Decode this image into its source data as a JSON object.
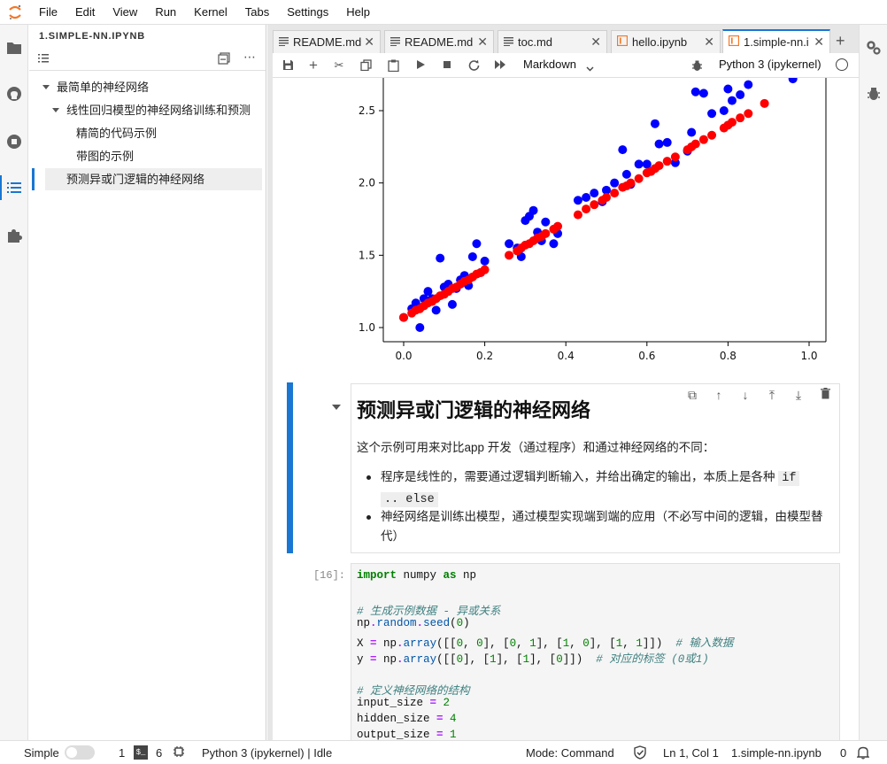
{
  "menu": [
    "File",
    "Edit",
    "View",
    "Run",
    "Kernel",
    "Tabs",
    "Settings",
    "Help"
  ],
  "toc": {
    "title": "1.SIMPLE-NN.IPYNB",
    "items": [
      {
        "label": "最简单的神经网络",
        "level": 1,
        "collapsible": true
      },
      {
        "label": "线性回归模型的神经网络训练和预测",
        "level": 2,
        "collapsible": true
      },
      {
        "label": "精简的代码示例",
        "level": 3,
        "collapsible": false
      },
      {
        "label": "带图的示例",
        "level": 3,
        "collapsible": false
      },
      {
        "label": "预测异或门逻辑的神经网络",
        "level": 1,
        "collapsible": false,
        "selected": true
      }
    ]
  },
  "tabs": [
    {
      "label": "README.md",
      "icon": "markdown-icon",
      "active": false
    },
    {
      "label": "README.md",
      "icon": "markdown-icon",
      "active": false
    },
    {
      "label": "toc.md",
      "icon": "markdown-icon",
      "active": false
    },
    {
      "label": "hello.ipynb",
      "icon": "notebook-icon",
      "active": false
    },
    {
      "label": "1.simple-nn.i",
      "icon": "notebook-icon",
      "active": true
    }
  ],
  "toolbar": {
    "cell_type": "Markdown",
    "kernel": "Python 3 (ipykernel)"
  },
  "chart_data": {
    "type": "scatter",
    "xlim": [
      0.0,
      1.0
    ],
    "ylim": [
      0.95,
      2.75
    ],
    "xticks": [
      "0.0",
      "0.2",
      "0.4",
      "0.6",
      "0.8",
      "1.0"
    ],
    "yticks": [
      "1.0",
      "1.5",
      "2.0",
      "2.5"
    ],
    "series": [
      {
        "color": "#0000ff",
        "kind": "scatter",
        "x": [
          0.0,
          0.02,
          0.03,
          0.04,
          0.05,
          0.06,
          0.07,
          0.08,
          0.09,
          0.1,
          0.11,
          0.12,
          0.13,
          0.14,
          0.15,
          0.16,
          0.17,
          0.18,
          0.19,
          0.2,
          0.26,
          0.28,
          0.29,
          0.3,
          0.31,
          0.32,
          0.33,
          0.34,
          0.35,
          0.37,
          0.38,
          0.43,
          0.45,
          0.47,
          0.49,
          0.5,
          0.52,
          0.54,
          0.55,
          0.56,
          0.58,
          0.6,
          0.61,
          0.62,
          0.63,
          0.65,
          0.67,
          0.7,
          0.71,
          0.72,
          0.74,
          0.76,
          0.79,
          0.8,
          0.81,
          0.83,
          0.85,
          0.96
        ],
        "y": [
          1.07,
          1.13,
          1.17,
          1.0,
          1.2,
          1.25,
          1.2,
          1.12,
          1.48,
          1.28,
          1.3,
          1.16,
          1.27,
          1.33,
          1.36,
          1.29,
          1.49,
          1.58,
          1.38,
          1.46,
          1.58,
          1.55,
          1.49,
          1.74,
          1.77,
          1.81,
          1.66,
          1.6,
          1.73,
          1.58,
          1.65,
          1.88,
          1.9,
          1.93,
          1.87,
          1.95,
          2.0,
          2.23,
          2.06,
          1.99,
          2.13,
          2.13,
          2.08,
          2.41,
          2.27,
          2.28,
          2.14,
          2.22,
          2.35,
          2.63,
          2.62,
          2.48,
          2.5,
          2.65,
          2.57,
          2.61,
          2.68,
          2.72
        ]
      },
      {
        "color": "#ff0000",
        "kind": "scatter",
        "x": [
          0.0,
          0.02,
          0.03,
          0.04,
          0.05,
          0.06,
          0.07,
          0.08,
          0.09,
          0.1,
          0.11,
          0.12,
          0.13,
          0.14,
          0.15,
          0.16,
          0.17,
          0.18,
          0.19,
          0.2,
          0.26,
          0.28,
          0.29,
          0.3,
          0.31,
          0.32,
          0.33,
          0.34,
          0.35,
          0.37,
          0.38,
          0.43,
          0.45,
          0.47,
          0.49,
          0.5,
          0.52,
          0.54,
          0.55,
          0.56,
          0.58,
          0.6,
          0.61,
          0.62,
          0.63,
          0.65,
          0.67,
          0.7,
          0.71,
          0.72,
          0.74,
          0.76,
          0.79,
          0.8,
          0.81,
          0.83,
          0.85,
          0.89
        ],
        "y": [
          1.07,
          1.1,
          1.12,
          1.13,
          1.15,
          1.17,
          1.18,
          1.2,
          1.22,
          1.23,
          1.25,
          1.27,
          1.28,
          1.3,
          1.32,
          1.33,
          1.35,
          1.37,
          1.38,
          1.4,
          1.5,
          1.53,
          1.55,
          1.57,
          1.58,
          1.6,
          1.62,
          1.63,
          1.65,
          1.68,
          1.7,
          1.78,
          1.82,
          1.85,
          1.88,
          1.9,
          1.93,
          1.97,
          1.98,
          2.0,
          2.03,
          2.07,
          2.08,
          2.1,
          2.12,
          2.15,
          2.18,
          2.23,
          2.25,
          2.27,
          2.3,
          2.33,
          2.38,
          2.4,
          2.42,
          2.45,
          2.48,
          2.55
        ]
      }
    ]
  },
  "md_cell": {
    "heading": "预测异或门逻辑的神经网络",
    "paragraph": "这个示例可用来对比app 开发（通过程序）和通过神经网络的不同：",
    "bullet1_pre": "程序是线性的，需要通过逻辑判断输入，并给出确定的输出，本质上是各种 ",
    "bullet1_code_a": "if",
    "bullet1_code_b": ".. else",
    "bullet2": "神经网络是训练出模型，通过模型实现端到端的应用（不必写中间的逻辑，由模型替代）"
  },
  "code_cell": {
    "prompt": "[16]:",
    "lines": [
      "import numpy as np",
      "",
      "# 生成示例数据 - 异或关系",
      "np.random.seed(0)",
      "X = np.array([[0, 0], [0, 1], [1, 0], [1, 1]])  # 输入数据",
      "y = np.array([[0], [1], [1], [0]])  # 对应的标签 (0或1)",
      "",
      "# 定义神经网络的结构",
      "input_size = 2",
      "hidden_size = 4",
      "output_size = 1"
    ]
  },
  "status": {
    "mode_label": "Simple",
    "terminals": "1",
    "kernels": "6",
    "kernel_status": "Python 3 (ipykernel) | Idle",
    "command_mode": "Mode: Command",
    "cursor": "Ln 1, Col 1",
    "filename": "1.simple-nn.ipynb",
    "notifications": "0"
  }
}
